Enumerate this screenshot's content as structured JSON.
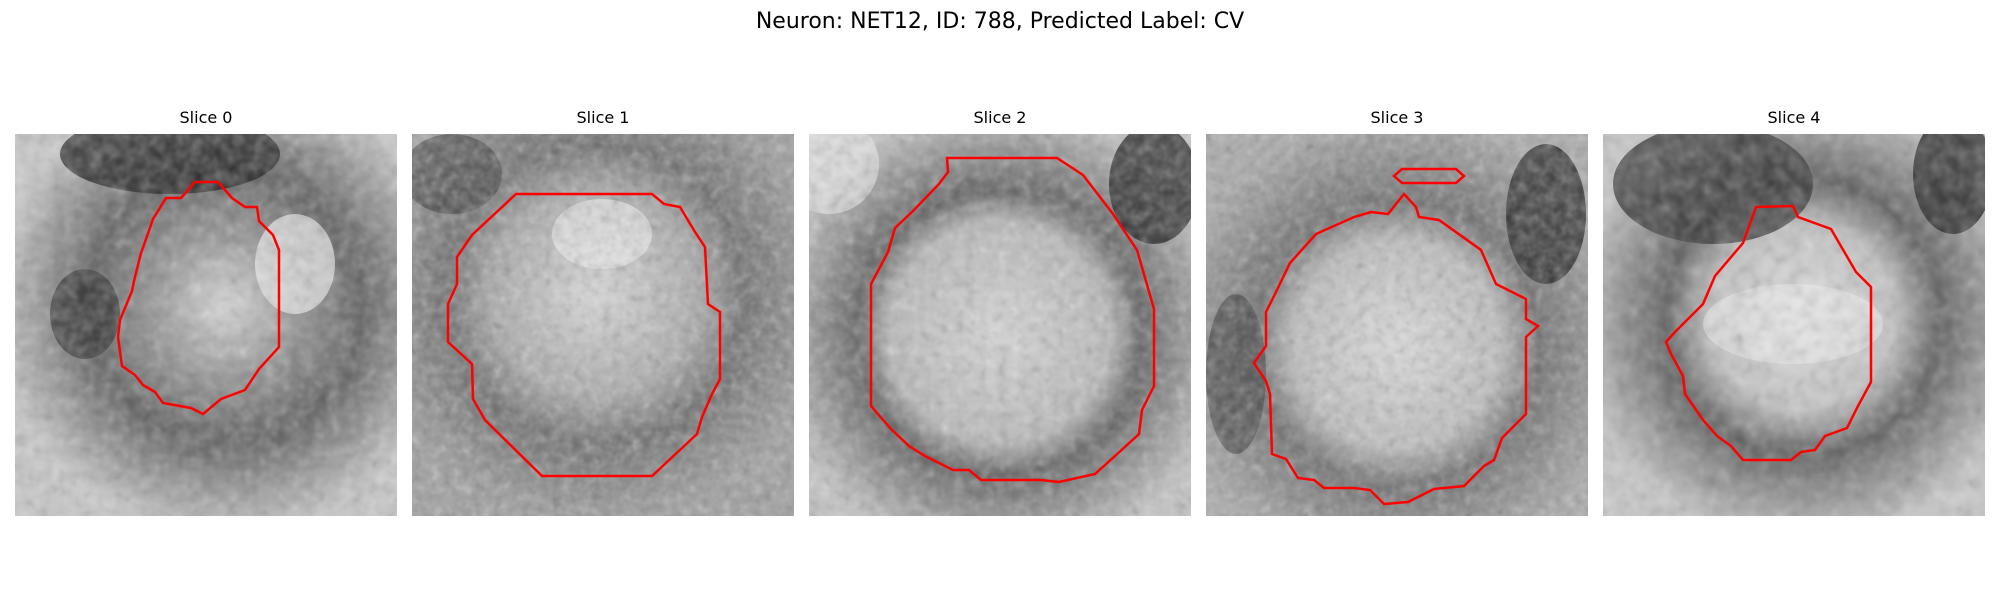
{
  "figure": {
    "title": "Neuron: NET12, ID: 788, Predicted Label: CV"
  },
  "colors": {
    "contour": "#ff0000"
  },
  "panels": [
    {
      "title": "Slice 0"
    },
    {
      "title": "Slice 1"
    },
    {
      "title": "Slice 2"
    },
    {
      "title": "Slice 3"
    },
    {
      "title": "Slice 4"
    }
  ]
}
